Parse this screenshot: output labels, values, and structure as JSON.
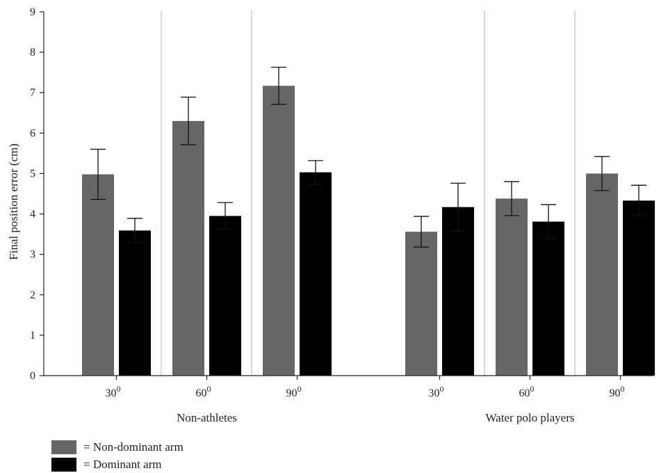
{
  "chart_data": {
    "type": "bar",
    "ylabel": "Final position error (cm)",
    "ylim": [
      0,
      9
    ],
    "yticks": [
      "0",
      "1",
      "2",
      "3",
      "4",
      "5",
      "6",
      "7",
      "8",
      "9"
    ],
    "groups": [
      {
        "name": "Non-athletes",
        "categories": [
          {
            "angle": "30",
            "sup": "0",
            "values": [
              4.98,
              3.59
            ],
            "errors": [
              0.62,
              0.3
            ]
          },
          {
            "angle": "60",
            "sup": "0",
            "values": [
              6.3,
              3.95
            ],
            "errors": [
              0.59,
              0.33
            ]
          },
          {
            "angle": "90",
            "sup": "0",
            "values": [
              7.17,
              5.03
            ],
            "errors": [
              0.46,
              0.29
            ]
          }
        ]
      },
      {
        "name": "Water polo players",
        "categories": [
          {
            "angle": "30",
            "sup": "0",
            "values": [
              3.56,
              4.17
            ],
            "errors": [
              0.38,
              0.59
            ]
          },
          {
            "angle": "60",
            "sup": "0",
            "values": [
              4.38,
              3.81
            ],
            "errors": [
              0.42,
              0.42
            ]
          },
          {
            "angle": "90",
            "sup": "0",
            "values": [
              5.0,
              4.33
            ],
            "errors": [
              0.42,
              0.38
            ]
          }
        ]
      }
    ],
    "series": [
      {
        "name": "= Non-dominant arm",
        "color": "#666666"
      },
      {
        "name": "= Dominant arm",
        "color": "#000000"
      }
    ],
    "grid": false,
    "legend_position": "bottom-left"
  }
}
